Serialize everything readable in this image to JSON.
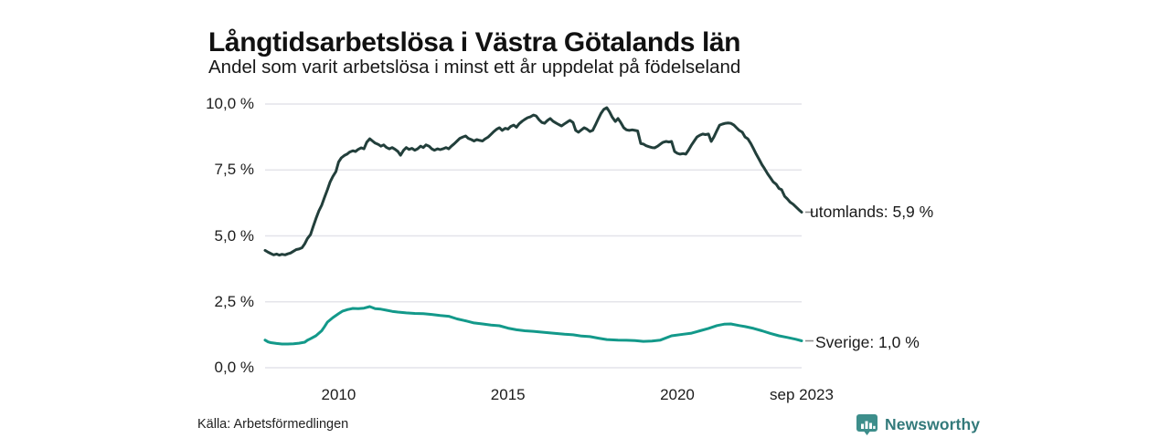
{
  "header": {
    "title": "Långtidsarbetslösa i Västra Götalands län",
    "subtitle": "Andel som varit arbetslösa i minst ett år uppdelat på födelseland"
  },
  "source": {
    "label": "Källa: Arbetsförmedlingen"
  },
  "branding": {
    "name": "Newsworthy",
    "logo_icon": "bar-chart-bubble-icon",
    "badge_color": "#3d8e8b",
    "text_color": "#337a7b"
  },
  "chart_data": {
    "type": "line",
    "title": "Långtidsarbetslösa i Västra Götalands län",
    "subtitle": "Andel som varit arbetslösa i minst ett år uppdelat på födelseland",
    "xlabel": "",
    "ylabel": "",
    "xlim": [
      2007.83,
      2023.67
    ],
    "ylim": [
      0,
      10
    ],
    "grid": "horizontal",
    "grid_color": "#e4e4ea",
    "connector_color": "#8f8f8f",
    "x_ticks": [
      {
        "x": 2010,
        "label": "2010"
      },
      {
        "x": 2015,
        "label": "2015"
      },
      {
        "x": 2020,
        "label": "2020"
      },
      {
        "x": 2023.67,
        "label": "sep 2023"
      }
    ],
    "y_ticks": [
      {
        "y": 0,
        "label": "0,0 %"
      },
      {
        "y": 2.5,
        "label": "2,5 %"
      },
      {
        "y": 5,
        "label": "5,0 %"
      },
      {
        "y": 7.5,
        "label": "7,5 %"
      },
      {
        "y": 10,
        "label": "10,0 %"
      }
    ],
    "series": [
      {
        "name": "utomlands",
        "end_label": "utomlands: 5,9 %",
        "end_value": "5,9 %",
        "color": "#223f3b",
        "points": [
          [
            2007.83,
            4.45
          ],
          [
            2007.92,
            4.38
          ],
          [
            2008.0,
            4.33
          ],
          [
            2008.08,
            4.28
          ],
          [
            2008.17,
            4.31
          ],
          [
            2008.25,
            4.27
          ],
          [
            2008.33,
            4.3
          ],
          [
            2008.42,
            4.28
          ],
          [
            2008.5,
            4.32
          ],
          [
            2008.58,
            4.35
          ],
          [
            2008.67,
            4.42
          ],
          [
            2008.75,
            4.48
          ],
          [
            2008.83,
            4.5
          ],
          [
            2008.92,
            4.55
          ],
          [
            2009.0,
            4.7
          ],
          [
            2009.08,
            4.9
          ],
          [
            2009.17,
            5.05
          ],
          [
            2009.25,
            5.35
          ],
          [
            2009.33,
            5.65
          ],
          [
            2009.42,
            5.95
          ],
          [
            2009.5,
            6.16
          ],
          [
            2009.58,
            6.45
          ],
          [
            2009.67,
            6.75
          ],
          [
            2009.75,
            7.05
          ],
          [
            2009.83,
            7.25
          ],
          [
            2009.92,
            7.44
          ],
          [
            2010.0,
            7.8
          ],
          [
            2010.08,
            7.96
          ],
          [
            2010.17,
            8.05
          ],
          [
            2010.25,
            8.1
          ],
          [
            2010.33,
            8.18
          ],
          [
            2010.42,
            8.23
          ],
          [
            2010.5,
            8.2
          ],
          [
            2010.58,
            8.28
          ],
          [
            2010.67,
            8.34
          ],
          [
            2010.75,
            8.3
          ],
          [
            2010.83,
            8.55
          ],
          [
            2010.92,
            8.68
          ],
          [
            2011.0,
            8.6
          ],
          [
            2011.08,
            8.52
          ],
          [
            2011.17,
            8.47
          ],
          [
            2011.25,
            8.4
          ],
          [
            2011.33,
            8.45
          ],
          [
            2011.42,
            8.35
          ],
          [
            2011.5,
            8.3
          ],
          [
            2011.58,
            8.35
          ],
          [
            2011.67,
            8.28
          ],
          [
            2011.75,
            8.2
          ],
          [
            2011.83,
            8.06
          ],
          [
            2011.92,
            8.25
          ],
          [
            2012.0,
            8.35
          ],
          [
            2012.08,
            8.28
          ],
          [
            2012.17,
            8.32
          ],
          [
            2012.25,
            8.25
          ],
          [
            2012.33,
            8.3
          ],
          [
            2012.42,
            8.4
          ],
          [
            2012.5,
            8.35
          ],
          [
            2012.58,
            8.45
          ],
          [
            2012.67,
            8.4
          ],
          [
            2012.75,
            8.3
          ],
          [
            2012.83,
            8.25
          ],
          [
            2012.92,
            8.3
          ],
          [
            2013.0,
            8.27
          ],
          [
            2013.08,
            8.3
          ],
          [
            2013.17,
            8.35
          ],
          [
            2013.25,
            8.3
          ],
          [
            2013.33,
            8.4
          ],
          [
            2013.42,
            8.5
          ],
          [
            2013.5,
            8.6
          ],
          [
            2013.58,
            8.7
          ],
          [
            2013.67,
            8.75
          ],
          [
            2013.75,
            8.79
          ],
          [
            2013.83,
            8.7
          ],
          [
            2013.92,
            8.65
          ],
          [
            2014.0,
            8.6
          ],
          [
            2014.08,
            8.65
          ],
          [
            2014.17,
            8.62
          ],
          [
            2014.25,
            8.6
          ],
          [
            2014.33,
            8.68
          ],
          [
            2014.42,
            8.75
          ],
          [
            2014.5,
            8.85
          ],
          [
            2014.58,
            8.95
          ],
          [
            2014.67,
            9.05
          ],
          [
            2014.75,
            9.1
          ],
          [
            2014.83,
            9.0
          ],
          [
            2014.92,
            9.08
          ],
          [
            2015.0,
            9.05
          ],
          [
            2015.08,
            9.15
          ],
          [
            2015.17,
            9.2
          ],
          [
            2015.25,
            9.12
          ],
          [
            2015.33,
            9.25
          ],
          [
            2015.42,
            9.35
          ],
          [
            2015.5,
            9.42
          ],
          [
            2015.58,
            9.48
          ],
          [
            2015.67,
            9.52
          ],
          [
            2015.75,
            9.58
          ],
          [
            2015.83,
            9.55
          ],
          [
            2015.92,
            9.4
          ],
          [
            2016.0,
            9.3
          ],
          [
            2016.08,
            9.27
          ],
          [
            2016.17,
            9.38
          ],
          [
            2016.25,
            9.45
          ],
          [
            2016.33,
            9.35
          ],
          [
            2016.42,
            9.28
          ],
          [
            2016.5,
            9.22
          ],
          [
            2016.58,
            9.17
          ],
          [
            2016.67,
            9.25
          ],
          [
            2016.75,
            9.32
          ],
          [
            2016.83,
            9.38
          ],
          [
            2016.92,
            9.3
          ],
          [
            2017.0,
            9.0
          ],
          [
            2017.08,
            8.93
          ],
          [
            2017.17,
            9.02
          ],
          [
            2017.25,
            9.1
          ],
          [
            2017.33,
            9.05
          ],
          [
            2017.42,
            8.96
          ],
          [
            2017.5,
            9.0
          ],
          [
            2017.58,
            9.2
          ],
          [
            2017.67,
            9.45
          ],
          [
            2017.75,
            9.65
          ],
          [
            2017.83,
            9.8
          ],
          [
            2017.92,
            9.86
          ],
          [
            2018.0,
            9.7
          ],
          [
            2018.08,
            9.5
          ],
          [
            2018.17,
            9.34
          ],
          [
            2018.25,
            9.45
          ],
          [
            2018.33,
            9.3
          ],
          [
            2018.42,
            9.1
          ],
          [
            2018.5,
            9.02
          ],
          [
            2018.58,
            9.0
          ],
          [
            2018.67,
            9.02
          ],
          [
            2018.75,
            9.0
          ],
          [
            2018.83,
            8.98
          ],
          [
            2018.92,
            8.5
          ],
          [
            2019.0,
            8.48
          ],
          [
            2019.08,
            8.42
          ],
          [
            2019.17,
            8.38
          ],
          [
            2019.25,
            8.35
          ],
          [
            2019.33,
            8.34
          ],
          [
            2019.42,
            8.4
          ],
          [
            2019.5,
            8.48
          ],
          [
            2019.58,
            8.55
          ],
          [
            2019.67,
            8.58
          ],
          [
            2019.75,
            8.56
          ],
          [
            2019.83,
            8.58
          ],
          [
            2019.92,
            8.2
          ],
          [
            2020.0,
            8.13
          ],
          [
            2020.08,
            8.1
          ],
          [
            2020.17,
            8.12
          ],
          [
            2020.25,
            8.1
          ],
          [
            2020.33,
            8.25
          ],
          [
            2020.42,
            8.45
          ],
          [
            2020.5,
            8.6
          ],
          [
            2020.58,
            8.75
          ],
          [
            2020.67,
            8.82
          ],
          [
            2020.75,
            8.86
          ],
          [
            2020.83,
            8.84
          ],
          [
            2020.92,
            8.86
          ],
          [
            2021.0,
            8.58
          ],
          [
            2021.08,
            8.75
          ],
          [
            2021.17,
            9.0
          ],
          [
            2021.25,
            9.2
          ],
          [
            2021.33,
            9.24
          ],
          [
            2021.42,
            9.27
          ],
          [
            2021.5,
            9.28
          ],
          [
            2021.58,
            9.27
          ],
          [
            2021.67,
            9.2
          ],
          [
            2021.75,
            9.1
          ],
          [
            2021.83,
            9.0
          ],
          [
            2021.92,
            8.93
          ],
          [
            2022.0,
            8.75
          ],
          [
            2022.08,
            8.68
          ],
          [
            2022.17,
            8.5
          ],
          [
            2022.25,
            8.3
          ],
          [
            2022.33,
            8.1
          ],
          [
            2022.42,
            7.89
          ],
          [
            2022.5,
            7.7
          ],
          [
            2022.58,
            7.54
          ],
          [
            2022.67,
            7.35
          ],
          [
            2022.75,
            7.2
          ],
          [
            2022.83,
            7.05
          ],
          [
            2022.92,
            6.96
          ],
          [
            2023.0,
            6.8
          ],
          [
            2023.08,
            6.75
          ],
          [
            2023.17,
            6.5
          ],
          [
            2023.25,
            6.4
          ],
          [
            2023.33,
            6.28
          ],
          [
            2023.42,
            6.2
          ],
          [
            2023.5,
            6.1
          ],
          [
            2023.58,
            6.0
          ],
          [
            2023.67,
            5.9
          ]
        ]
      },
      {
        "name": "Sverige",
        "end_label": "Sverige: 1,0 %",
        "end_value": "1,0 %",
        "color": "#13998a",
        "points": [
          [
            2007.83,
            1.05
          ],
          [
            2007.92,
            0.98
          ],
          [
            2008.0,
            0.95
          ],
          [
            2008.17,
            0.92
          ],
          [
            2008.33,
            0.9
          ],
          [
            2008.5,
            0.9
          ],
          [
            2008.67,
            0.91
          ],
          [
            2008.83,
            0.93
          ],
          [
            2009.0,
            0.97
          ],
          [
            2009.08,
            1.04
          ],
          [
            2009.17,
            1.1
          ],
          [
            2009.33,
            1.21
          ],
          [
            2009.5,
            1.4
          ],
          [
            2009.58,
            1.55
          ],
          [
            2009.67,
            1.73
          ],
          [
            2009.83,
            1.9
          ],
          [
            2010.0,
            2.05
          ],
          [
            2010.12,
            2.15
          ],
          [
            2010.25,
            2.2
          ],
          [
            2010.42,
            2.25
          ],
          [
            2010.58,
            2.24
          ],
          [
            2010.75,
            2.26
          ],
          [
            2010.92,
            2.32
          ],
          [
            2011.0,
            2.28
          ],
          [
            2011.08,
            2.24
          ],
          [
            2011.25,
            2.22
          ],
          [
            2011.42,
            2.18
          ],
          [
            2011.58,
            2.14
          ],
          [
            2011.75,
            2.11
          ],
          [
            2012.0,
            2.08
          ],
          [
            2012.25,
            2.06
          ],
          [
            2012.5,
            2.05
          ],
          [
            2012.75,
            2.02
          ],
          [
            2013.0,
            1.98
          ],
          [
            2013.25,
            1.95
          ],
          [
            2013.5,
            1.85
          ],
          [
            2013.75,
            1.78
          ],
          [
            2014.0,
            1.7
          ],
          [
            2014.25,
            1.66
          ],
          [
            2014.5,
            1.62
          ],
          [
            2014.75,
            1.59
          ],
          [
            2015.0,
            1.5
          ],
          [
            2015.25,
            1.44
          ],
          [
            2015.5,
            1.4
          ],
          [
            2015.75,
            1.38
          ],
          [
            2016.0,
            1.35
          ],
          [
            2016.33,
            1.31
          ],
          [
            2016.67,
            1.27
          ],
          [
            2016.92,
            1.25
          ],
          [
            2017.17,
            1.2
          ],
          [
            2017.42,
            1.18
          ],
          [
            2017.67,
            1.12
          ],
          [
            2017.92,
            1.07
          ],
          [
            2018.25,
            1.05
          ],
          [
            2018.5,
            1.04
          ],
          [
            2018.75,
            1.03
          ],
          [
            2019.0,
            1.0
          ],
          [
            2019.25,
            1.01
          ],
          [
            2019.5,
            1.05
          ],
          [
            2019.83,
            1.21
          ],
          [
            2020.17,
            1.27
          ],
          [
            2020.42,
            1.31
          ],
          [
            2020.67,
            1.4
          ],
          [
            2020.92,
            1.49
          ],
          [
            2021.17,
            1.6
          ],
          [
            2021.38,
            1.65
          ],
          [
            2021.58,
            1.66
          ],
          [
            2021.83,
            1.6
          ],
          [
            2022.0,
            1.56
          ],
          [
            2022.25,
            1.49
          ],
          [
            2022.5,
            1.4
          ],
          [
            2022.75,
            1.3
          ],
          [
            2023.0,
            1.21
          ],
          [
            2023.25,
            1.15
          ],
          [
            2023.5,
            1.08
          ],
          [
            2023.67,
            1.02
          ]
        ]
      }
    ]
  }
}
